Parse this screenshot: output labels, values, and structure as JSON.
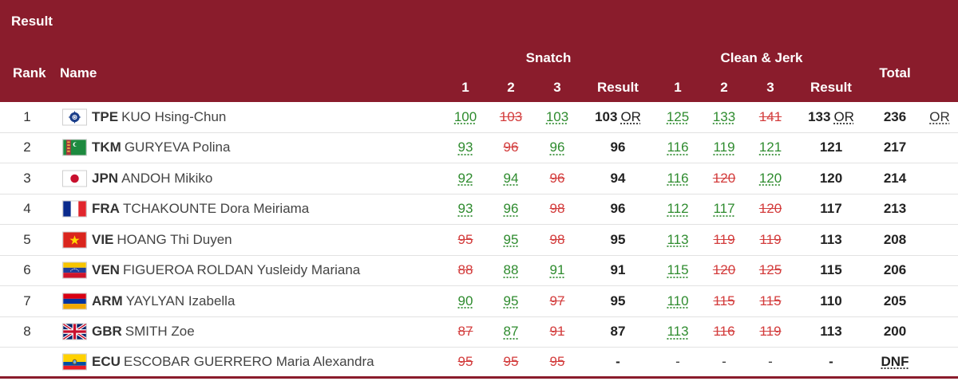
{
  "header": {
    "section": "Result",
    "rank": "Rank",
    "name": "Name",
    "snatch": "Snatch",
    "clean_jerk": "Clean & Jerk",
    "total": "Total",
    "att1": "1",
    "att2": "2",
    "att3": "3",
    "result": "Result"
  },
  "athletes": [
    {
      "rank": "1",
      "noc": "TPE",
      "name": "KUO Hsing-Chun",
      "flag": "TPE",
      "snatch": [
        {
          "v": "100",
          "ok": true
        },
        {
          "v": "103",
          "ok": false
        },
        {
          "v": "103",
          "ok": true
        }
      ],
      "snatch_result": "103",
      "snatch_rec": "OR",
      "cj": [
        {
          "v": "125",
          "ok": true
        },
        {
          "v": "133",
          "ok": true
        },
        {
          "v": "141",
          "ok": false
        }
      ],
      "cj_result": "133",
      "cj_rec": "OR",
      "total": "236",
      "total_rec": "OR"
    },
    {
      "rank": "2",
      "noc": "TKM",
      "name": "GURYEVA Polina",
      "flag": "TKM",
      "snatch": [
        {
          "v": "93",
          "ok": true
        },
        {
          "v": "96",
          "ok": false
        },
        {
          "v": "96",
          "ok": true
        }
      ],
      "snatch_result": "96",
      "snatch_rec": "",
      "cj": [
        {
          "v": "116",
          "ok": true
        },
        {
          "v": "119",
          "ok": true
        },
        {
          "v": "121",
          "ok": true
        }
      ],
      "cj_result": "121",
      "cj_rec": "",
      "total": "217",
      "total_rec": ""
    },
    {
      "rank": "3",
      "noc": "JPN",
      "name": "ANDOH Mikiko",
      "flag": "JPN",
      "snatch": [
        {
          "v": "92",
          "ok": true
        },
        {
          "v": "94",
          "ok": true
        },
        {
          "v": "96",
          "ok": false
        }
      ],
      "snatch_result": "94",
      "snatch_rec": "",
      "cj": [
        {
          "v": "116",
          "ok": true
        },
        {
          "v": "120",
          "ok": false
        },
        {
          "v": "120",
          "ok": true
        }
      ],
      "cj_result": "120",
      "cj_rec": "",
      "total": "214",
      "total_rec": ""
    },
    {
      "rank": "4",
      "noc": "FRA",
      "name": "TCHAKOUNTE Dora Meiriama",
      "flag": "FRA",
      "snatch": [
        {
          "v": "93",
          "ok": true
        },
        {
          "v": "96",
          "ok": true
        },
        {
          "v": "98",
          "ok": false
        }
      ],
      "snatch_result": "96",
      "snatch_rec": "",
      "cj": [
        {
          "v": "112",
          "ok": true
        },
        {
          "v": "117",
          "ok": true
        },
        {
          "v": "120",
          "ok": false
        }
      ],
      "cj_result": "117",
      "cj_rec": "",
      "total": "213",
      "total_rec": ""
    },
    {
      "rank": "5",
      "noc": "VIE",
      "name": "HOANG Thi Duyen",
      "flag": "VIE",
      "snatch": [
        {
          "v": "95",
          "ok": false
        },
        {
          "v": "95",
          "ok": true
        },
        {
          "v": "98",
          "ok": false
        }
      ],
      "snatch_result": "95",
      "snatch_rec": "",
      "cj": [
        {
          "v": "113",
          "ok": true
        },
        {
          "v": "119",
          "ok": false
        },
        {
          "v": "119",
          "ok": false
        }
      ],
      "cj_result": "113",
      "cj_rec": "",
      "total": "208",
      "total_rec": ""
    },
    {
      "rank": "6",
      "noc": "VEN",
      "name": "FIGUEROA ROLDAN Yusleidy Mariana",
      "flag": "VEN",
      "snatch": [
        {
          "v": "88",
          "ok": false
        },
        {
          "v": "88",
          "ok": true
        },
        {
          "v": "91",
          "ok": true
        }
      ],
      "snatch_result": "91",
      "snatch_rec": "",
      "cj": [
        {
          "v": "115",
          "ok": true
        },
        {
          "v": "120",
          "ok": false
        },
        {
          "v": "125",
          "ok": false
        }
      ],
      "cj_result": "115",
      "cj_rec": "",
      "total": "206",
      "total_rec": ""
    },
    {
      "rank": "7",
      "noc": "ARM",
      "name": "YAYLYAN Izabella",
      "flag": "ARM",
      "snatch": [
        {
          "v": "90",
          "ok": true
        },
        {
          "v": "95",
          "ok": true
        },
        {
          "v": "97",
          "ok": false
        }
      ],
      "snatch_result": "95",
      "snatch_rec": "",
      "cj": [
        {
          "v": "110",
          "ok": true
        },
        {
          "v": "115",
          "ok": false
        },
        {
          "v": "115",
          "ok": false
        }
      ],
      "cj_result": "110",
      "cj_rec": "",
      "total": "205",
      "total_rec": ""
    },
    {
      "rank": "8",
      "noc": "GBR",
      "name": "SMITH Zoe",
      "flag": "GBR",
      "snatch": [
        {
          "v": "87",
          "ok": false
        },
        {
          "v": "87",
          "ok": true
        },
        {
          "v": "91",
          "ok": false
        }
      ],
      "snatch_result": "87",
      "snatch_rec": "",
      "cj": [
        {
          "v": "113",
          "ok": true
        },
        {
          "v": "116",
          "ok": false
        },
        {
          "v": "119",
          "ok": false
        }
      ],
      "cj_result": "113",
      "cj_rec": "",
      "total": "200",
      "total_rec": ""
    },
    {
      "rank": "",
      "noc": "ECU",
      "name": "ESCOBAR GUERRERO Maria Alexandra",
      "flag": "ECU",
      "snatch": [
        {
          "v": "95",
          "ok": false
        },
        {
          "v": "95",
          "ok": false
        },
        {
          "v": "95",
          "ok": false
        }
      ],
      "snatch_result": "-",
      "snatch_rec": "",
      "cj": [
        {
          "v": "-",
          "ok": null
        },
        {
          "v": "-",
          "ok": null
        },
        {
          "v": "-",
          "ok": null
        }
      ],
      "cj_result": "-",
      "cj_rec": "",
      "total": "DNF",
      "total_rec": ""
    }
  ]
}
